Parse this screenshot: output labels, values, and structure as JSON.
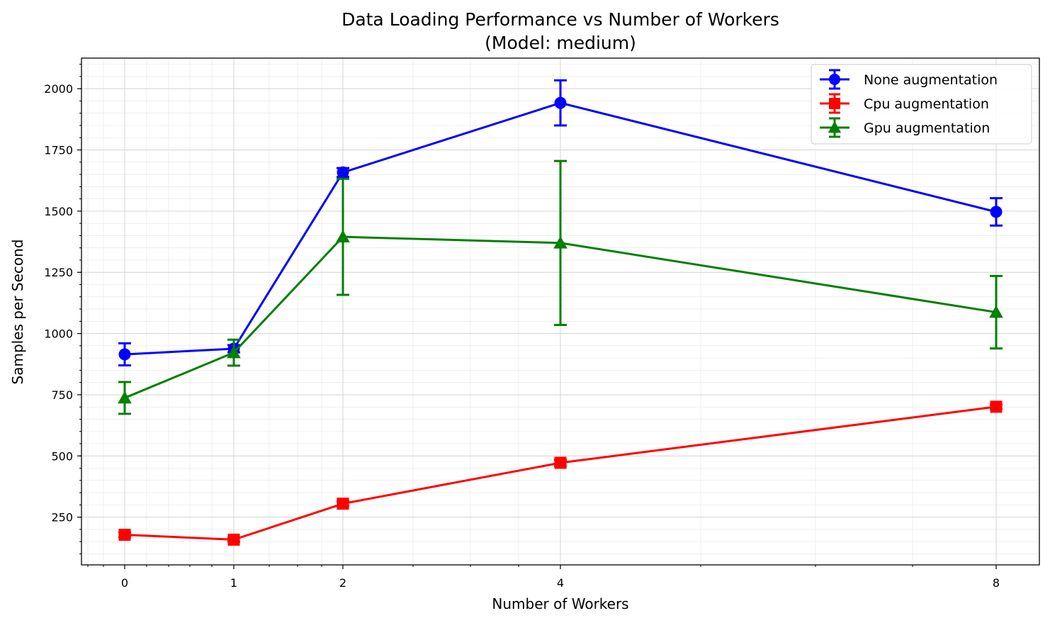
{
  "chart_data": {
    "type": "line",
    "title": "Data Loading Performance vs Number of Workers",
    "subtitle": "(Model: medium)",
    "xlabel": "Number of Workers",
    "ylabel": "Samples per Second",
    "x": [
      0,
      1,
      2,
      4,
      8
    ],
    "x_ticks": [
      "0",
      "1",
      "2",
      "4",
      "8"
    ],
    "y_ticks": [
      "250",
      "500",
      "750",
      "1000",
      "1250",
      "1500",
      "1750",
      "2000"
    ],
    "ylim": [
      55,
      2125
    ],
    "grid": true,
    "legend_position": "top-right",
    "series": [
      {
        "name": "None augmentation",
        "color": "#0000ff",
        "marker": "circle",
        "values": [
          915,
          938,
          1658,
          1942,
          1497
        ],
        "errors": [
          45,
          15,
          18,
          92,
          56
        ]
      },
      {
        "name": "Cpu augmentation",
        "color": "#ff0000",
        "marker": "square",
        "values": [
          178,
          158,
          305,
          472,
          701
        ],
        "errors": [
          10,
          8,
          10,
          12,
          8
        ]
      },
      {
        "name": "Gpu augmentation",
        "color": "#008000",
        "marker": "triangle",
        "values": [
          737,
          922,
          1395,
          1370,
          1087
        ],
        "errors": [
          65,
          53,
          237,
          335,
          148
        ]
      }
    ]
  }
}
